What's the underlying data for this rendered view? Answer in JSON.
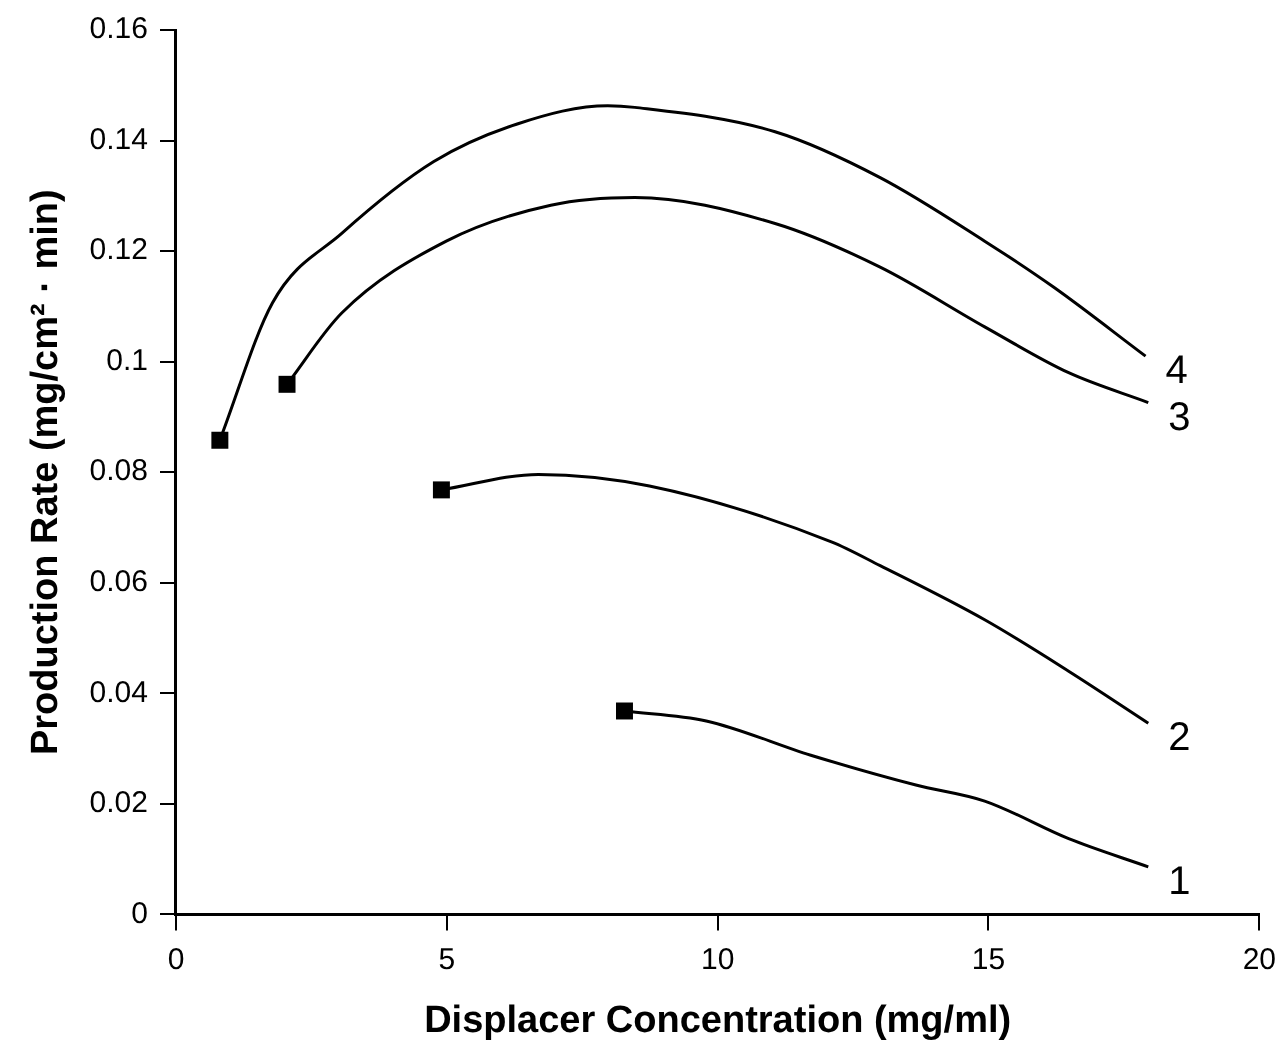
{
  "chart_data": {
    "type": "line",
    "xlabel": "Displacer Concentration (mg/ml)",
    "ylabel": "Production Rate (mg/cm² · min)",
    "xlim": [
      0,
      20
    ],
    "xticks": [
      0,
      5,
      10,
      15,
      20
    ],
    "ylim": [
      0,
      0.16
    ],
    "yticks": [
      0,
      0.02,
      0.04,
      0.06,
      0.08,
      0.1,
      0.12,
      0.14,
      0.16
    ],
    "grid": false,
    "legend": false,
    "marker": "none",
    "line_style": "solid",
    "series": [
      {
        "name": "4",
        "color": "#000000",
        "x": [
          0.81,
          1.78,
          3.06,
          4.76,
          6.3,
          7.97,
          8.47,
          11.06,
          13.0,
          14.93,
          16.2,
          17.9
        ],
        "values": [
          0.0858,
          0.1106,
          0.1232,
          0.1362,
          0.143,
          0.1463,
          0.146,
          0.1416,
          0.1333,
          0.1218,
          0.1135,
          0.101
        ]
      },
      {
        "name": "3",
        "color": "#000000",
        "x": [
          2.05,
          3.06,
          4.99,
          6.92,
          8.47,
          11.06,
          13.0,
          14.93,
          16.48,
          17.95
        ],
        "values": [
          0.0959,
          0.1088,
          0.1218,
          0.1283,
          0.1297,
          0.125,
          0.1171,
          0.1063,
          0.098,
          0.0926
        ]
      },
      {
        "name": "2",
        "color": "#000000",
        "x": [
          4.9,
          6.69,
          8.74,
          12.1,
          13.0,
          14.93,
          16.48,
          17.95
        ],
        "values": [
          0.0768,
          0.0796,
          0.0775,
          0.0674,
          0.0631,
          0.0533,
          0.044,
          0.0346
        ]
      },
      {
        "name": "1",
        "color": "#000000",
        "x": [
          8.28,
          9.79,
          11.72,
          13.66,
          14.93,
          16.48,
          17.95
        ],
        "values": [
          0.0368,
          0.035,
          0.0288,
          0.0234,
          0.0205,
          0.0137,
          0.0086
        ]
      },
      {
        "type": "scatter",
        "marker": "square",
        "color": "#000000",
        "x": [
          0.81,
          2.05,
          4.9,
          8.28
        ],
        "values": [
          0.0858,
          0.0959,
          0.0768,
          0.0368
        ]
      }
    ]
  }
}
